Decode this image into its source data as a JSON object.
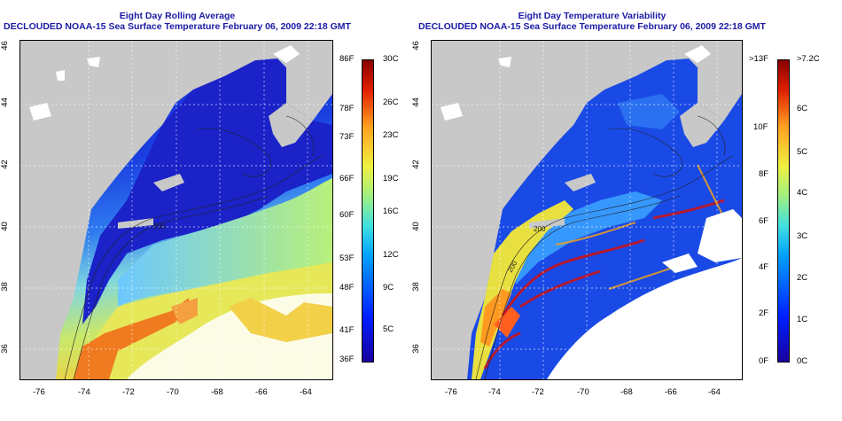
{
  "left_panel": {
    "title_line1": "Eight Day Rolling Average",
    "title_line2": "DECLOUDED NOAA-15 Sea Surface Temperature February 06, 2009 22:18 GMT",
    "lon_ticks": [
      "-76",
      "-74",
      "-72",
      "-70",
      "-68",
      "-66",
      "-64"
    ],
    "lat_ticks": [
      "46",
      "44",
      "42",
      "40",
      "38",
      "36"
    ],
    "colorbar_left": [
      "86F",
      "78F",
      "73F",
      "66F",
      "60F",
      "53F",
      "48F",
      "41F",
      "36F"
    ],
    "colorbar_right": [
      "30C",
      "26C",
      "23C",
      "19C",
      "16C",
      "12C",
      "9C",
      "5C"
    ]
  },
  "right_panel": {
    "title_line1": "Eight Day Temperature Variability",
    "title_line2": "DECLOUDED NOAA-15 Sea Surface Temperature February 06, 2009 22:18 GMT",
    "lon_ticks": [
      "-76",
      "-74",
      "-72",
      "-70",
      "-68",
      "-66",
      "-64"
    ],
    "lat_ticks": [
      "46",
      "44",
      "42",
      "40",
      "38",
      "36"
    ],
    "colorbar_left": [
      ">13F",
      "10F",
      "8F",
      "6F",
      "4F",
      "2F",
      "0F"
    ],
    "colorbar_right": [
      ">7.2C",
      "6C",
      "5C",
      "4C",
      "3C",
      "2C",
      "1C",
      "0C"
    ]
  },
  "contour_labels": [
    "200",
    "200",
    "200"
  ],
  "colors": {
    "title": "#1a1aa6",
    "land": "#c8c8c8",
    "cloud": "#ffffff"
  }
}
